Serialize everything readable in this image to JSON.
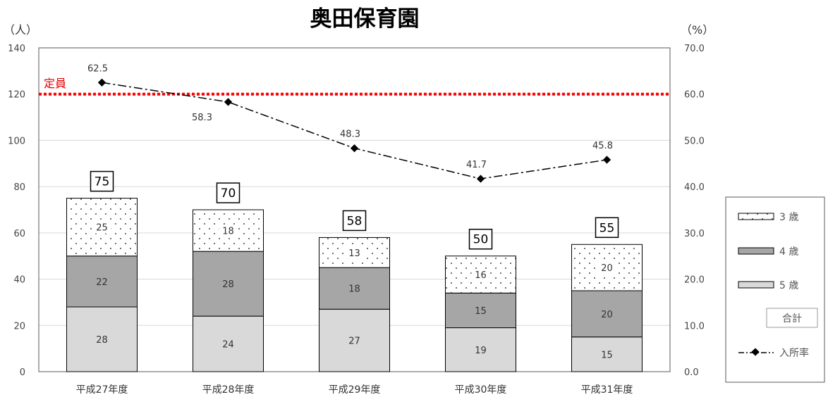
{
  "chart_data": {
    "type": "bar",
    "stacked": true,
    "title": "奥田保育園",
    "left_axis_unit": "（人）",
    "right_axis_unit": "（%）",
    "categories": [
      "平成27年度",
      "平成28年度",
      "平成29年度",
      "平成30年度",
      "平成31年度"
    ],
    "ylim": [
      0,
      140
    ],
    "yticks": [
      0,
      20,
      40,
      60,
      80,
      100,
      120,
      140
    ],
    "y2lim": [
      0,
      70
    ],
    "y2ticks": [
      "0.0",
      "10.0",
      "20.0",
      "30.0",
      "40.0",
      "50.0",
      "60.0",
      "70.0"
    ],
    "grid": true,
    "series": [
      {
        "name": "5 歳",
        "values": [
          28,
          24,
          27,
          19,
          15
        ],
        "color": "#d9d9d9",
        "pattern": "solid"
      },
      {
        "name": "4 歳",
        "values": [
          22,
          28,
          18,
          15,
          20
        ],
        "color": "#a6a6a6",
        "pattern": "solid"
      },
      {
        "name": "3 歳",
        "values": [
          25,
          18,
          13,
          16,
          20
        ],
        "color": "#ffffff",
        "pattern": "dots"
      }
    ],
    "totals_name": "合計",
    "totals": [
      75,
      70,
      58,
      50,
      55
    ],
    "rate_series": {
      "name": "入所率",
      "values": [
        62.5,
        58.3,
        48.3,
        41.7,
        45.8
      ],
      "labels": [
        "62.5",
        "58.3",
        "48.3",
        "41.7",
        "45.8"
      ],
      "axis": "right",
      "style": "dash-dot with diamond markers"
    },
    "capacity": {
      "label": "定員",
      "value": 120,
      "color": "#ff0000",
      "style": "dotted"
    },
    "legend": {
      "placement": "right",
      "order": [
        "3 歳",
        "4 歳",
        "5 歳",
        "合計",
        "入所率"
      ]
    }
  }
}
